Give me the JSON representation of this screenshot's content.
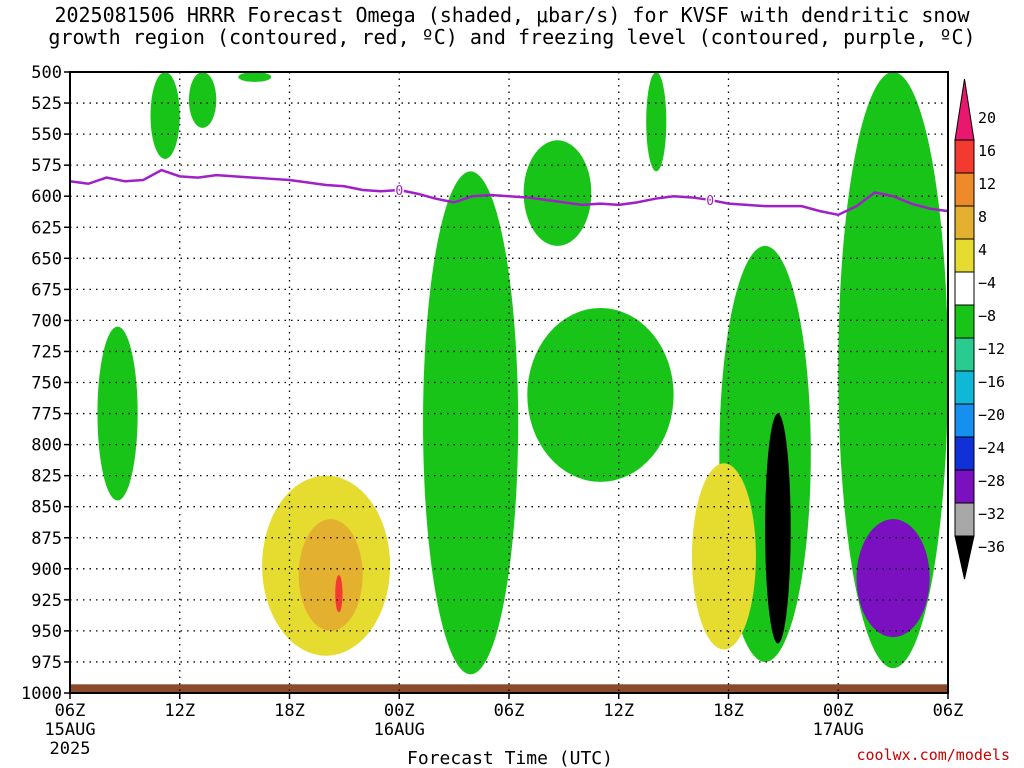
{
  "chart_data": {
    "type": "contour",
    "title": "2025081506 HRRR Forecast Omega (shaded, μbar/s) for KVSF with dendritic snow\ngrowth region (contoured, red, ºC) and freezing level (contoured, purple, ºC)",
    "xlabel": "Forecast Time (UTC)",
    "x_ticks": [
      "06Z",
      "12Z",
      "18Z",
      "00Z",
      "06Z",
      "12Z",
      "18Z",
      "00Z",
      "06Z"
    ],
    "x_tick_hours": [
      0,
      6,
      12,
      18,
      24,
      30,
      36,
      42,
      48
    ],
    "x_date_labels": [
      {
        "hour": 0,
        "text": "15AUG"
      },
      {
        "hour": 0,
        "text": "2025",
        "row": 2
      },
      {
        "hour": 18,
        "text": "16AUG"
      },
      {
        "hour": 42,
        "text": "17AUG"
      }
    ],
    "xlim": [
      0,
      48
    ],
    "y_ticks": [
      500,
      525,
      550,
      575,
      600,
      625,
      650,
      675,
      700,
      725,
      750,
      775,
      800,
      825,
      850,
      875,
      900,
      925,
      950,
      975,
      1000
    ],
    "ylim": [
      500,
      1000
    ],
    "y_inverted": true,
    "grid": true,
    "colorbar": {
      "levels": [
        "20",
        "16",
        "12",
        "8",
        "4",
        "−4",
        "−8",
        "−12",
        "−16",
        "−20",
        "−24",
        "−28",
        "−32",
        "−36"
      ],
      "colors": [
        "#e8186e",
        "#f23a30",
        "#ee8a2a",
        "#e3b030",
        "#e6dc30",
        "#ffffff",
        "#18c418",
        "#28cc90",
        "#10b8d8",
        "#1590f0",
        "#1030d8",
        "#7a10c0",
        "#a8a8a8",
        "#000000"
      ]
    },
    "freezing_level": {
      "label": "0",
      "color": "#a020c8",
      "hours": [
        0,
        1,
        2,
        3,
        4,
        5,
        6,
        7,
        8,
        9,
        10,
        11,
        12,
        13,
        14,
        15,
        16,
        17,
        18,
        19,
        20,
        21,
        22,
        23,
        24,
        25,
        26,
        27,
        28,
        29,
        30,
        31,
        32,
        33,
        34,
        35,
        36,
        37,
        38,
        39,
        40,
        41,
        42,
        43,
        44,
        45,
        46,
        47,
        48
      ],
      "pressure": [
        588,
        590,
        585,
        588,
        587,
        579,
        584,
        585,
        583,
        584,
        585,
        586,
        587,
        589,
        591,
        592,
        595,
        596,
        595,
        598,
        602,
        605,
        600,
        599,
        600,
        601,
        603,
        605,
        607,
        606,
        607,
        605,
        602,
        600,
        601,
        603,
        606,
        607,
        608,
        608,
        608,
        612,
        615,
        608,
        597,
        600,
        606,
        610,
        612
      ]
    },
    "ground_color": "#8b4a2a",
    "omega_regions": [
      {
        "level": "-4",
        "color": "#18c418",
        "hour_range": [
          1.5,
          3.7
        ],
        "p_range": [
          705,
          845
        ]
      },
      {
        "level": "-4",
        "color": "#18c418",
        "hour_range": [
          4.4,
          6.0
        ],
        "p_range": [
          500,
          570
        ]
      },
      {
        "level": "-4",
        "color": "#18c418",
        "hour_range": [
          6.5,
          8.0
        ],
        "p_range": [
          500,
          545
        ]
      },
      {
        "level": "-4",
        "color": "#18c418",
        "hour_range": [
          9.2,
          11.0
        ],
        "p_range": [
          500,
          508
        ]
      },
      {
        "level": "-4",
        "color": "#18c418",
        "hour_range": [
          19.3,
          24.5
        ],
        "p_range": [
          580,
          985
        ]
      },
      {
        "level": "-4",
        "color": "#18c418",
        "hour_range": [
          24.8,
          28.5
        ],
        "p_range": [
          555,
          640
        ]
      },
      {
        "level": "-4",
        "color": "#18c418",
        "hour_range": [
          25.0,
          33.0
        ],
        "p_range": [
          690,
          830
        ]
      },
      {
        "level": "-4",
        "color": "#18c418",
        "hour_range": [
          31.5,
          32.6
        ],
        "p_range": [
          500,
          580
        ]
      },
      {
        "level": "-4",
        "color": "#18c418",
        "hour_range": [
          35.5,
          40.5
        ],
        "p_range": [
          640,
          975
        ]
      },
      {
        "level": "-4",
        "color": "#18c418",
        "hour_range": [
          42.0,
          48.0
        ],
        "p_range": [
          500,
          980
        ]
      },
      {
        "level": "4",
        "color": "#e6dc30",
        "hour_range": [
          10.5,
          17.5
        ],
        "p_range": [
          825,
          970
        ]
      },
      {
        "level": "8",
        "color": "#e3b030",
        "hour_range": [
          12.5,
          16.0
        ],
        "p_range": [
          860,
          950
        ]
      },
      {
        "level": "16",
        "color": "#f23a30",
        "hour_range": [
          14.5,
          14.9
        ],
        "p_range": [
          905,
          935
        ]
      },
      {
        "level": "4",
        "color": "#e6dc30",
        "hour_range": [
          34.0,
          37.5
        ],
        "p_range": [
          815,
          965
        ]
      },
      {
        "level": "-36",
        "color": "#000000",
        "hour_range": [
          38.0,
          39.4
        ],
        "p_range": [
          775,
          960
        ]
      },
      {
        "level": "-28",
        "color": "#7a10c0",
        "hour_range": [
          43.0,
          47.0
        ],
        "p_range": [
          860,
          955
        ]
      }
    ]
  },
  "footer": {
    "credit": "coolwx.com/models"
  }
}
